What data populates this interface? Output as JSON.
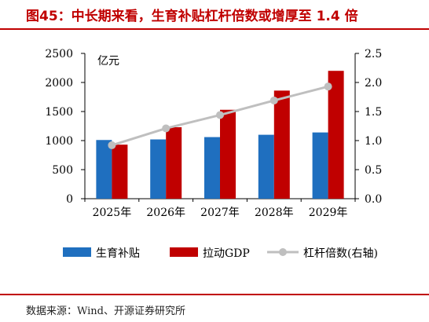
{
  "header": {
    "title": "图45：中长期来看，生育补贴杠杆倍数或增厚至 1.4 倍"
  },
  "footer": {
    "source": "数据来源：Wind、开源证券研究所"
  },
  "chart_data": {
    "type": "bar",
    "categories": [
      "2025年",
      "2026年",
      "2027年",
      "2028年",
      "2029年"
    ],
    "unit_label": "亿元",
    "ylim_left": [
      0,
      2500
    ],
    "yticks_left": [
      "0",
      "500",
      "1000",
      "1500",
      "2000",
      "2500"
    ],
    "ylim_right": [
      0,
      2.5
    ],
    "yticks_right": [
      "0.0",
      "0.5",
      "1.0",
      "1.5",
      "2.0",
      "2.5"
    ],
    "grid": false,
    "legend_position": "bottom",
    "series": [
      {
        "name": "生育补贴",
        "type": "bar",
        "axis": "left",
        "color": "#1f6fbf",
        "values": [
          1010,
          1020,
          1060,
          1100,
          1140
        ]
      },
      {
        "name": "拉动GDP",
        "type": "bar",
        "axis": "left",
        "color": "#c00000",
        "values": [
          930,
          1230,
          1530,
          1860,
          2200
        ]
      },
      {
        "name": "杠杆倍数(右轴)",
        "type": "line",
        "axis": "right",
        "color": "#bfbfbf",
        "values": [
          0.92,
          1.21,
          1.44,
          1.69,
          1.93
        ]
      }
    ]
  }
}
